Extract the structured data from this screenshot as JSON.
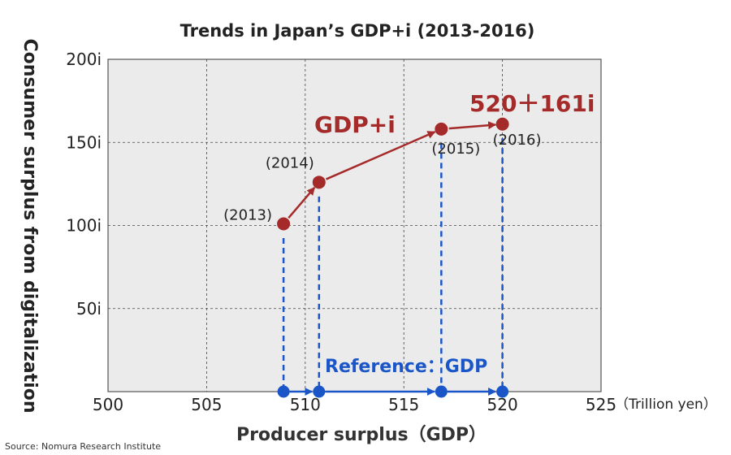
{
  "chart_data": {
    "type": "scatter",
    "title": "Trends in Japan’s GDP+i (2013-2016)",
    "xlabel": "Producer surplus（GDP）",
    "ylabel": "Consumer surplus from digitalization",
    "x_unit": "（Trillion yen）",
    "xlim": [
      500,
      525
    ],
    "ylim": [
      0,
      200
    ],
    "x_ticks": [
      "500",
      "505",
      "510",
      "515",
      "520",
      "525"
    ],
    "x_tick_values": [
      500,
      505,
      510,
      515,
      520,
      525
    ],
    "y_ticks": [
      "50i",
      "100i",
      "150i",
      "200i"
    ],
    "y_tick_values": [
      50,
      100,
      150,
      200
    ],
    "grid": true,
    "series": [
      {
        "name": "GDP+i",
        "color": "#a52a2a",
        "points": [
          {
            "label": "(2013)",
            "x": 508.9,
            "y": 101
          },
          {
            "label": "(2014)",
            "x": 510.7,
            "y": 126
          },
          {
            "label": "(2015)",
            "x": 516.9,
            "y": 158
          },
          {
            "label": "(2016)",
            "x": 520.0,
            "y": 161
          }
        ]
      },
      {
        "name": "Reference：GDP",
        "color": "#1a56c8",
        "points": [
          {
            "x": 508.9,
            "y": 0
          },
          {
            "x": 510.7,
            "y": 0
          },
          {
            "x": 516.9,
            "y": 0
          },
          {
            "x": 520.0,
            "y": 0
          }
        ]
      }
    ],
    "annotations": {
      "gdp_i_label": "GDP+i",
      "value_label": "520＋161i",
      "reference_label": "Reference：GDP"
    }
  },
  "source": "Source: Nomura Research Institute"
}
